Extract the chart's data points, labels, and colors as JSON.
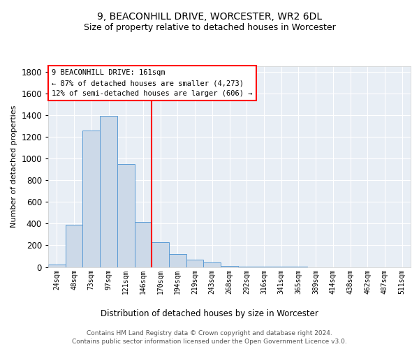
{
  "title": "9, BEACONHILL DRIVE, WORCESTER, WR2 6DL",
  "subtitle": "Size of property relative to detached houses in Worcester",
  "xlabel": "Distribution of detached houses by size in Worcester",
  "ylabel": "Number of detached properties",
  "footnote1": "Contains HM Land Registry data © Crown copyright and database right 2024.",
  "footnote2": "Contains public sector information licensed under the Open Government Licence v3.0.",
  "annotation_title": "9 BEACONHILL DRIVE: 161sqm",
  "annotation_line1": "← 87% of detached houses are smaller (4,273)",
  "annotation_line2": "12% of semi-detached houses are larger (606) →",
  "bin_labels": [
    "24sqm",
    "48sqm",
    "73sqm",
    "97sqm",
    "121sqm",
    "146sqm",
    "170sqm",
    "194sqm",
    "219sqm",
    "243sqm",
    "268sqm",
    "292sqm",
    "316sqm",
    "341sqm",
    "365sqm",
    "389sqm",
    "414sqm",
    "438sqm",
    "462sqm",
    "487sqm",
    "511sqm"
  ],
  "bar_values": [
    20,
    390,
    1260,
    1390,
    950,
    415,
    230,
    120,
    65,
    45,
    10,
    5,
    2,
    1,
    1,
    0,
    0,
    0,
    0,
    0,
    0
  ],
  "bar_color": "#ccd9e8",
  "bar_edge_color": "#5b9bd5",
  "red_line_x": 5.5,
  "highlight_line_color": "red",
  "ylim": [
    0,
    1850
  ],
  "yticks": [
    0,
    200,
    400,
    600,
    800,
    1000,
    1200,
    1400,
    1600,
    1800
  ],
  "bg_color": "#e8eef5",
  "grid_color": "#ffffff",
  "title_fontsize": 10,
  "subtitle_fontsize": 9
}
